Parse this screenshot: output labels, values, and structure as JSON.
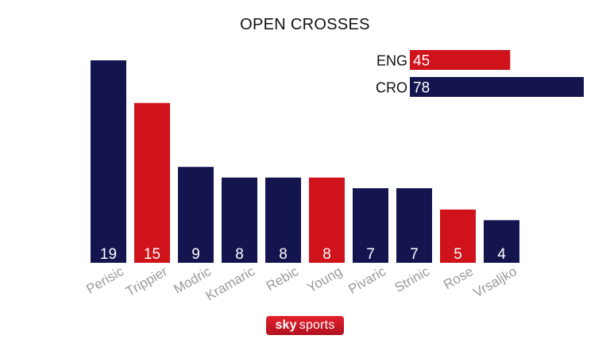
{
  "chart_data": [
    {
      "type": "bar",
      "title": "OPEN CROSSES",
      "categories": [
        "Perisic",
        "Trippier",
        "Modric",
        "Kramaric",
        "Rebic",
        "Young",
        "Pivaric",
        "Strinic",
        "Rose",
        "Vrsaljko"
      ],
      "values": [
        19,
        15,
        9,
        8,
        8,
        8,
        7,
        7,
        5,
        4
      ],
      "bar_colors": [
        "#14154f",
        "#d0121b",
        "#14154f",
        "#14154f",
        "#14154f",
        "#d0121b",
        "#14154f",
        "#14154f",
        "#d0121b",
        "#14154f"
      ],
      "xlabel": "",
      "ylabel": "",
      "ylim": [
        0,
        19
      ],
      "grid": false
    },
    {
      "type": "bar",
      "orientation": "horizontal",
      "categories": [
        "ENG",
        "CRO"
      ],
      "values": [
        45,
        78
      ],
      "bar_colors": [
        "#d0121b",
        "#14154f"
      ],
      "xlim": [
        0,
        78
      ]
    }
  ],
  "colors": {
    "england": "#d0121b",
    "croatia": "#14154f"
  },
  "logo": {
    "brand": "sky",
    "product": "sports"
  }
}
